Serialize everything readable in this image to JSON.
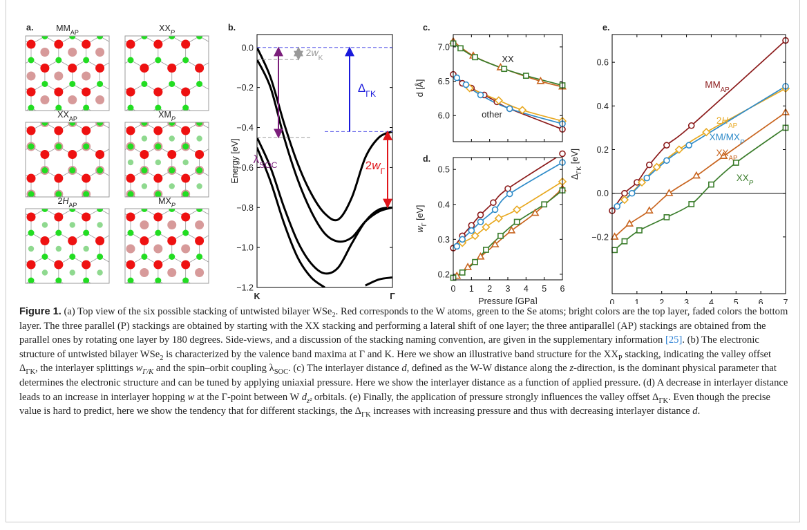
{
  "panel_a": {
    "panel_label": "a.",
    "tiles": [
      {
        "label": [
          {
            "text": "MM"
          },
          {
            "text": "AP",
            "style": "sub"
          }
        ]
      },
      {
        "label": [
          {
            "text": "XX"
          },
          {
            "text": "P",
            "style": "sub-italic"
          }
        ]
      },
      {
        "label": [
          {
            "text": "XX"
          },
          {
            "text": "AP",
            "style": "sub"
          }
        ]
      },
      {
        "label": [
          {
            "text": "XM"
          },
          {
            "text": "P",
            "style": "sub-italic"
          }
        ]
      },
      {
        "label": [
          {
            "text": "2"
          },
          {
            "text": "H",
            "style": "italic"
          },
          {
            "text": "AP",
            "style": "sub"
          }
        ]
      },
      {
        "label": [
          {
            "text": "MX"
          },
          {
            "text": "P",
            "style": "sub-italic"
          }
        ]
      }
    ]
  },
  "chart_data": [
    {
      "type": "line",
      "panel_label": "b.",
      "ylabel": "Energy [eV]",
      "x": [
        0,
        0.1,
        0.2,
        0.3,
        0.4,
        0.5,
        0.6,
        0.7,
        0.8,
        0.9,
        1.0
      ],
      "xlim": [
        0,
        1
      ],
      "xticks": [
        {
          "value": 0,
          "label": "K"
        },
        {
          "value": 1,
          "label": "Γ"
        }
      ],
      "ylim": [
        -1.2,
        0.065
      ],
      "yticks": [
        {
          "value": 0,
          "label": "0.0"
        },
        {
          "value": -0.2,
          "label": "−0.2"
        },
        {
          "value": -0.4,
          "label": "−0.4"
        },
        {
          "value": -0.6,
          "label": "−0.6"
        },
        {
          "value": -0.8,
          "label": "−0.8"
        },
        {
          "value": -1.0,
          "label": "−1.0"
        },
        {
          "value": -1.2,
          "label": "−1.2"
        }
      ],
      "series": [
        {
          "color": "#000000",
          "values": [
            0.0,
            -0.15,
            -0.38,
            -0.58,
            -0.73,
            -0.83,
            -0.86,
            -0.75,
            -0.55,
            -0.45,
            -0.42
          ]
        },
        {
          "color": "#000000",
          "values": [
            -0.06,
            -0.2,
            -0.45,
            -0.66,
            -0.82,
            -0.93,
            -0.97,
            -0.95,
            -0.87,
            -0.82,
            -0.8
          ]
        },
        {
          "color": "#000000",
          "values": [
            -0.45,
            -0.6,
            -0.8,
            -0.97,
            -1.08,
            -1.13,
            -1.1,
            -0.98,
            -0.87,
            -0.81,
            -0.8
          ]
        },
        {
          "color": "#000000",
          "values": [
            -0.5,
            -0.67,
            -0.88,
            -1.05,
            -1.15,
            -1.2,
            null,
            null,
            null,
            null,
            null
          ]
        },
        {
          "color": "#000000",
          "values": [
            null,
            null,
            null,
            null,
            null,
            null,
            null,
            null,
            -1.19,
            -1.16,
            -1.15
          ]
        }
      ],
      "annotations": [
        {
          "color": "#7b1f7b",
          "text": [
            {
              "text": "λ"
            },
            {
              "text": "SOC",
              "style": "sub"
            }
          ]
        },
        {
          "color": "#999999",
          "text": [
            {
              "text": "2"
            },
            {
              "text": "w",
              "style": "italic"
            },
            {
              "text": "K",
              "style": "sub"
            }
          ]
        },
        {
          "color": "#1a1adb",
          "text": [
            {
              "text": "Δ"
            },
            {
              "text": "ΓK",
              "style": "sub"
            }
          ]
        },
        {
          "color": "#e0151a",
          "text": [
            {
              "text": "2"
            },
            {
              "text": "w",
              "style": "italic"
            },
            {
              "text": "Γ",
              "style": "sub"
            }
          ]
        }
      ]
    },
    {
      "type": "line",
      "panel_label": "c.",
      "ylabel": "d [Å]",
      "xlim": [
        0,
        6
      ],
      "xticks": [
        0,
        1,
        2,
        3,
        4,
        5,
        6
      ],
      "xtick_labels": false,
      "ylim": [
        5.62,
        7.18
      ],
      "yticks": [
        {
          "value": 7,
          "label": "7.0"
        },
        6.5,
        {
          "value": 6,
          "label": "6.0"
        }
      ],
      "series": [
        {
          "color": "#8b1a1a",
          "marker": "circle",
          "x": [
            0,
            0.5,
            1,
            1.7,
            2.4,
            3.1,
            6
          ],
          "values": [
            6.6,
            6.47,
            6.4,
            6.3,
            6.2,
            6.1,
            5.8
          ]
        },
        {
          "color": "#e8a922",
          "marker": "diamond",
          "x": [
            0.9,
            2.5,
            3.8,
            6
          ],
          "values": [
            6.4,
            6.22,
            6.08,
            5.92
          ]
        },
        {
          "color": "#2e8bc9",
          "marker": "circle",
          "x": [
            0.2,
            0.7,
            1.5,
            3.1,
            6
          ],
          "values": [
            6.55,
            6.45,
            6.3,
            6.1,
            5.88
          ]
        },
        {
          "color": "#c8641e",
          "marker": "triangle",
          "x": [
            0,
            1.1,
            2.6,
            4.8,
            6
          ],
          "values": [
            7.08,
            6.87,
            6.7,
            6.5,
            6.42
          ]
        },
        {
          "color": "#3b7d2c",
          "marker": "square",
          "x": [
            0,
            0.4,
            1.2,
            2.8,
            4,
            6
          ],
          "values": [
            7.05,
            6.98,
            6.85,
            6.68,
            6.58,
            6.44
          ]
        }
      ],
      "annotations": [
        {
          "text": "XX"
        },
        {
          "text": "other"
        }
      ]
    },
    {
      "type": "line",
      "panel_label": "d.",
      "xlabel": "Pressure [GPa]",
      "ylabel": [
        {
          "text": "w",
          "style": "italic"
        },
        {
          "text": "Γ",
          "style": "sub"
        },
        {
          "text": " [eV]"
        }
      ],
      "xlim": [
        0,
        6
      ],
      "xticks": [
        0,
        1,
        2,
        3,
        4,
        5,
        6
      ],
      "ylim": [
        0.184,
        0.534
      ],
      "yticks": [
        0.2,
        0.3,
        0.4,
        0.5
      ],
      "series": [
        {
          "color": "#8b1a1a",
          "marker": "circle",
          "x": [
            0,
            0.5,
            1,
            1.5,
            2.2,
            3,
            6
          ],
          "values": [
            0.275,
            0.31,
            0.34,
            0.37,
            0.405,
            0.445,
            0.545
          ]
        },
        {
          "color": "#e8a922",
          "marker": "diamond",
          "x": [
            0.5,
            1.2,
            1.8,
            2.5,
            3.5,
            6
          ],
          "values": [
            0.29,
            0.31,
            0.335,
            0.36,
            0.385,
            0.465
          ]
        },
        {
          "color": "#2e8bc9",
          "marker": "circle",
          "x": [
            0.2,
            0.5,
            1,
            1.5,
            2.3,
            3.1,
            6
          ],
          "values": [
            0.28,
            0.3,
            0.325,
            0.35,
            0.385,
            0.43,
            0.52
          ]
        },
        {
          "color": "#c8641e",
          "marker": "triangle",
          "x": [
            0.2,
            0.8,
            1.5,
            2.3,
            3.2,
            4.5,
            6
          ],
          "values": [
            0.195,
            0.22,
            0.25,
            0.285,
            0.325,
            0.375,
            0.445
          ]
        },
        {
          "color": "#3b7d2c",
          "marker": "square",
          "x": [
            0,
            0.5,
            1.2,
            1.8,
            2.6,
            3.5,
            5,
            6
          ],
          "values": [
            0.19,
            0.205,
            0.235,
            0.27,
            0.31,
            0.35,
            0.4,
            0.44
          ]
        }
      ]
    },
    {
      "type": "line",
      "panel_label": "e.",
      "xlabel": "Pressure [GPa]",
      "ylabel": [
        {
          "text": "Δ"
        },
        {
          "text": "ΓK",
          "style": "sub"
        },
        {
          "text": " [eV]"
        }
      ],
      "xlim": [
        0,
        7
      ],
      "xticks": [
        0,
        1,
        2,
        3,
        4,
        5,
        6,
        7
      ],
      "ylim": [
        -0.46,
        0.727
      ],
      "yticks": [
        {
          "value": -0.2,
          "label": "−0.2"
        },
        {
          "value": 0,
          "label": "0.0"
        },
        0.2,
        0.4,
        0.6
      ],
      "zero_line": true,
      "series": [
        {
          "name": [
            {
              "text": "MM"
            },
            {
              "text": "AP",
              "style": "sub"
            }
          ],
          "color": "#8b1a1a",
          "marker": "circle",
          "x": [
            0,
            0.5,
            1,
            1.5,
            2.2,
            3.2,
            7
          ],
          "values": [
            -0.08,
            0.0,
            0.05,
            0.13,
            0.22,
            0.31,
            0.7
          ]
        },
        {
          "name": [
            {
              "text": "2"
            },
            {
              "text": "H",
              "style": "italic"
            },
            {
              "text": "AP",
              "style": "sub"
            }
          ],
          "color": "#e8a922",
          "marker": "diamond",
          "x": [
            0.5,
            1.2,
            1.8,
            2.7,
            3.8,
            7
          ],
          "values": [
            -0.03,
            0.05,
            0.12,
            0.2,
            0.28,
            0.48
          ]
        },
        {
          "name": [
            {
              "text": "XM/MX"
            },
            {
              "text": "P",
              "style": "sub-italic"
            }
          ],
          "color": "#2e8bc9",
          "marker": "circle",
          "x": [
            0.2,
            0.8,
            1.4,
            2.2,
            3.1,
            7
          ],
          "values": [
            -0.06,
            0.0,
            0.07,
            0.15,
            0.22,
            0.49
          ]
        },
        {
          "name": [
            {
              "text": "XX"
            },
            {
              "text": "AP",
              "style": "sub"
            }
          ],
          "color": "#c8641e",
          "marker": "triangle",
          "x": [
            0.1,
            0.7,
            1.5,
            2.3,
            3.4,
            4.5,
            7
          ],
          "values": [
            -0.2,
            -0.14,
            -0.08,
            0.0,
            0.08,
            0.17,
            0.37
          ]
        },
        {
          "name": [
            {
              "text": "XX"
            },
            {
              "text": "P",
              "style": "sub-italic"
            }
          ],
          "color": "#3b7d2c",
          "marker": "square",
          "x": [
            0.1,
            0.5,
            1.1,
            2.2,
            3.2,
            4,
            5,
            7
          ],
          "values": [
            -0.26,
            -0.22,
            -0.17,
            -0.11,
            -0.05,
            0.04,
            0.14,
            0.3
          ]
        }
      ]
    }
  ],
  "caption": [
    {
      "text": "Figure 1.",
      "style": "bold"
    },
    {
      "text": " (a) Top view of the six possible stacking of untwisted bilayer WSe"
    },
    {
      "text": "2",
      "style": "sub"
    },
    {
      "text": ". Red corresponds to the W atoms, green to the Se atoms; bright colors are the top layer, faded colors the bottom layer. The three parallel (P) stackings are obtained by starting with the XX stacking and performing a lateral shift of one layer; the three antiparallel (AP) stackings are obtained from the parallel ones by rotating one layer by 180 degrees. Side-views, and a discussion of the stacking naming convention, are given in the supplementary information "
    },
    {
      "text": "[25]",
      "style": "link"
    },
    {
      "text": ". (b) The electronic structure of untwisted bilayer WSe"
    },
    {
      "text": "2",
      "style": "sub"
    },
    {
      "text": " is characterized by the valence band maxima at Γ and K. Here we show an illustrative band structure for the XX"
    },
    {
      "text": "P",
      "style": "sub"
    },
    {
      "text": " stacking, indicating the valley offset Δ"
    },
    {
      "text": "ΓK",
      "style": "sub"
    },
    {
      "text": ", the interlayer splittings "
    },
    {
      "text": "w",
      "style": "italic"
    },
    {
      "text": "Γ/K",
      "style": "sub-italic"
    },
    {
      "text": " and the spin–orbit coupling λ"
    },
    {
      "text": "SOC",
      "style": "sub"
    },
    {
      "text": ". (c) The interlayer distance "
    },
    {
      "text": "d",
      "style": "italic"
    },
    {
      "text": ", defined as the W-W distance along the "
    },
    {
      "text": "z",
      "style": "italic"
    },
    {
      "text": "-direction, is the dominant physical parameter that determines the electronic structure and can be tuned by applying uniaxial pressure. Here we show the interlayer distance as a function of applied pressure. (d) A decrease in interlayer distance leads to an increase in interlayer hopping "
    },
    {
      "text": "w",
      "style": "italic"
    },
    {
      "text": " at the Γ-point between W "
    },
    {
      "text": "d",
      "style": "italic"
    },
    {
      "text": "z²",
      "style": "sub-italic"
    },
    {
      "text": " orbitals. (e) Finally, the application of pressure strongly influences the valley offset Δ"
    },
    {
      "text": "ΓK",
      "style": "sub"
    },
    {
      "text": ". Even though the precise value is hard to predict, here we show the tendency that for different stackings, the Δ"
    },
    {
      "text": "ΓK",
      "style": "sub"
    },
    {
      "text": " increases with increasing pressure and thus with decreasing interlayer distance "
    },
    {
      "text": "d",
      "style": "italic"
    },
    {
      "text": "."
    }
  ]
}
